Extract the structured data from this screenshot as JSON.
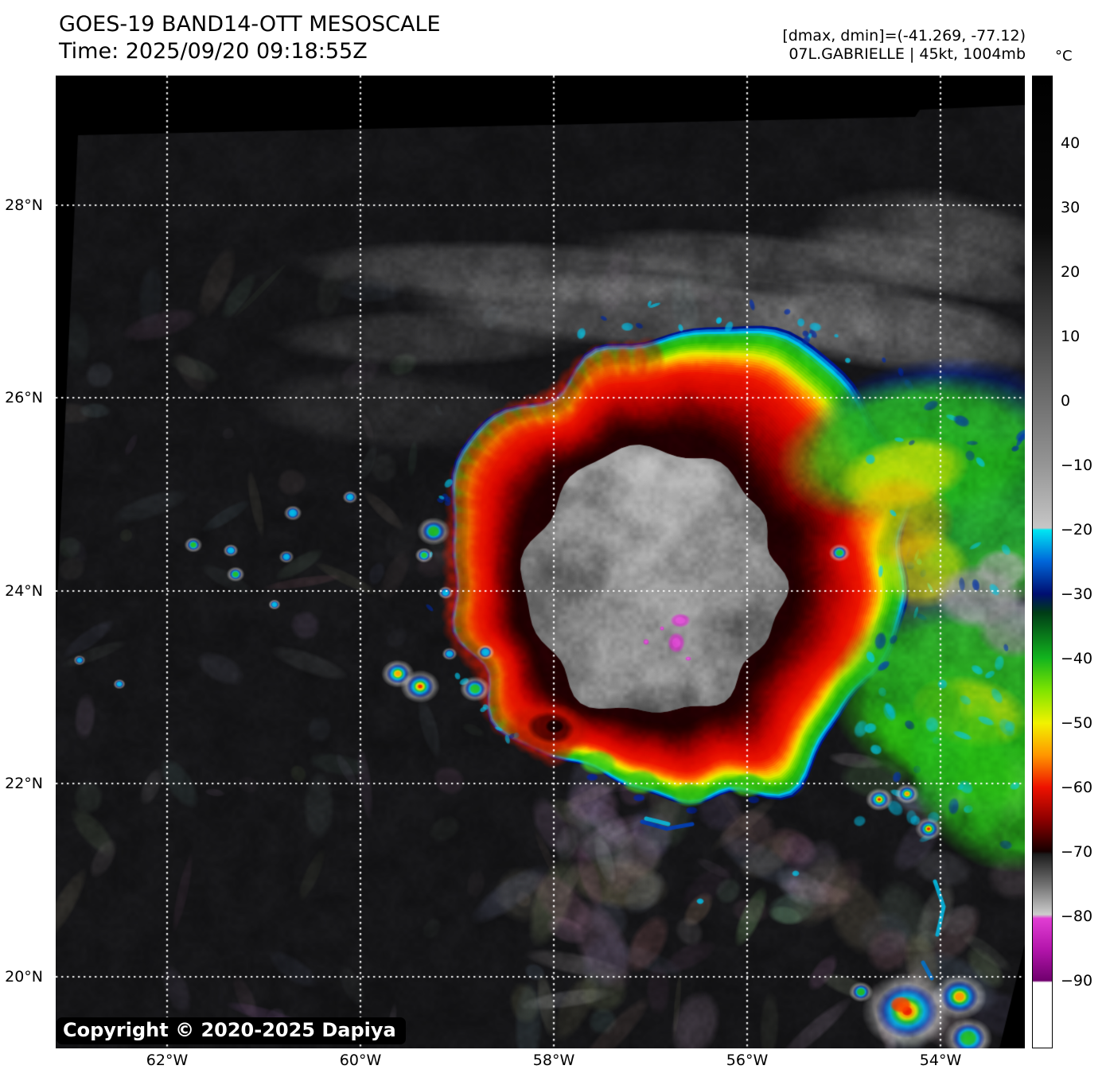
{
  "header": {
    "title": "GOES-19 BAND14-OTT MESOSCALE",
    "time": "Time: 2025/09/20 09:18:55Z"
  },
  "annotations": {
    "dmax_dmin": "[dmax, dmin]=(-41.269, -77.12)",
    "storm_info": "07L.GABRIELLE | 45kt, 1004mb"
  },
  "colorbar": {
    "unit": "°C",
    "tick_values": [
      40,
      30,
      20,
      10,
      0,
      -10,
      -20,
      -30,
      -40,
      -50,
      -60,
      -70,
      -80,
      -90
    ],
    "tick_labels": [
      "40",
      "30",
      "20",
      "10",
      "0",
      "−10",
      "−20",
      "−30",
      "−40",
      "−50",
      "−60",
      "−70",
      "−80",
      "−90"
    ],
    "scale_top_value": 50.5,
    "scale_range": 151,
    "gradient_stops": [
      [
        0,
        "#000000"
      ],
      [
        16,
        "#0b0b0b"
      ],
      [
        33.4,
        "#6f6f6f"
      ],
      [
        40,
        "#959595"
      ],
      [
        46.5,
        "#c6c6c6"
      ],
      [
        46.7,
        "#00e6f2"
      ],
      [
        49.9,
        "#0067da"
      ],
      [
        53.3,
        "#000e70"
      ],
      [
        55.2,
        "#003c16"
      ],
      [
        59.9,
        "#12b41e"
      ],
      [
        63.2,
        "#7ee400"
      ],
      [
        66.6,
        "#f2f200"
      ],
      [
        69.9,
        "#ff9600"
      ],
      [
        73.2,
        "#ee1200"
      ],
      [
        76.5,
        "#8e0000"
      ],
      [
        79.8,
        "#160000"
      ],
      [
        80.1,
        "#1c1c1c"
      ],
      [
        83.2,
        "#707070"
      ],
      [
        86.3,
        "#cdcdcd"
      ],
      [
        86.7,
        "#e13dd3"
      ],
      [
        89.9,
        "#b315ab"
      ],
      [
        93.1,
        "#70006e"
      ],
      [
        93.3,
        "#ffffff"
      ],
      [
        100,
        "#ffffff"
      ]
    ]
  },
  "map": {
    "lat_labels": [
      "28°N",
      "26°N",
      "24°N",
      "22°N",
      "20°N"
    ],
    "lon_labels": [
      "62°W",
      "60°W",
      "58°W",
      "56°W",
      "54°W"
    ],
    "copyright": "Copyright © 2020-2025 Dapiya"
  }
}
